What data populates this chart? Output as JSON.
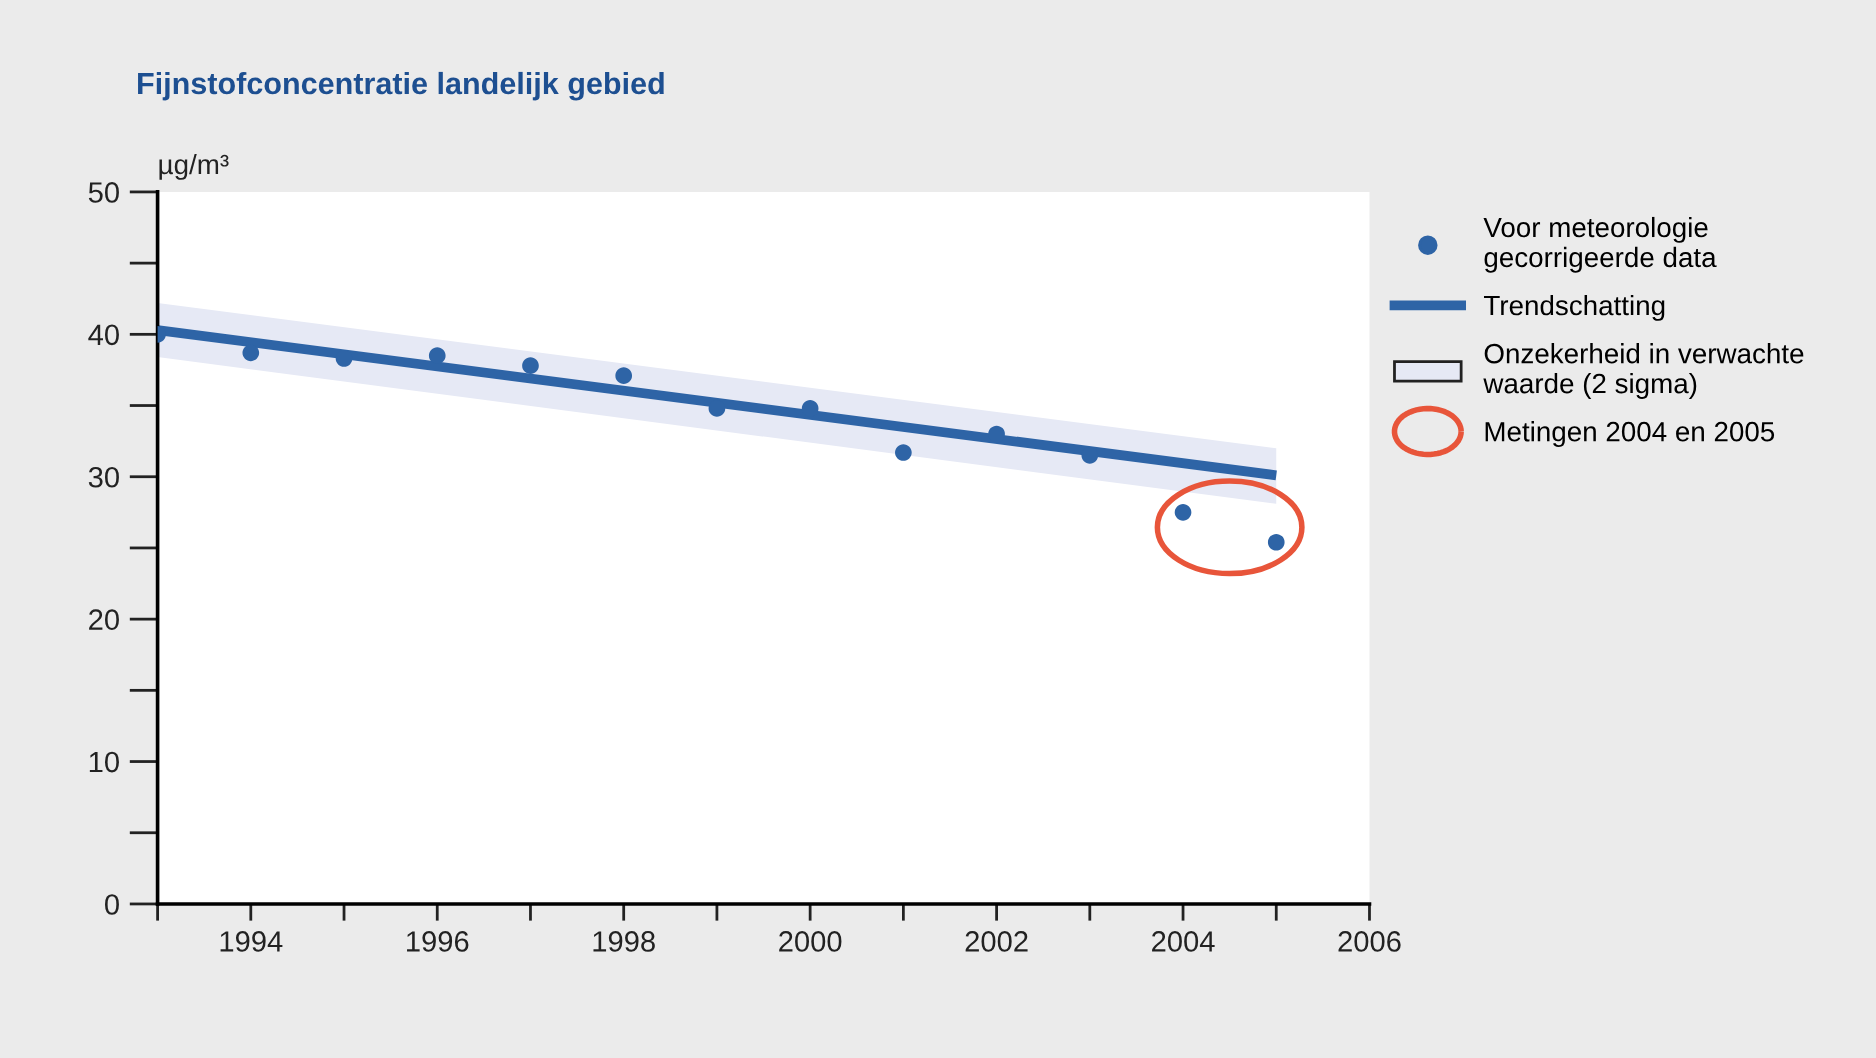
{
  "chart_data": {
    "type": "scatter",
    "title": "Fijnstofconcentratie landelijk gebied",
    "ylabel": "µg/m³",
    "x": [
      1993,
      1994,
      1995,
      1996,
      1997,
      1998,
      1999,
      2000,
      2001,
      2002,
      2003,
      2004,
      2005
    ],
    "series": [
      {
        "name": "Voor meteorologie\ngecorrigeerde data",
        "color": "#2e64a6",
        "marker": "circle",
        "values": [
          40.0,
          38.7,
          38.3,
          38.5,
          37.8,
          37.1,
          34.8,
          34.8,
          31.7,
          33.0,
          31.5,
          27.5,
          25.4
        ]
      },
      {
        "name": "Trendschatting",
        "type": "line",
        "color": "#2e64a6",
        "line_style": "solid",
        "x": [
          1993,
          2005
        ],
        "values": [
          40.3,
          30.1
        ],
        "lower": [
          38.4,
          28.1
        ],
        "upper": [
          42.2,
          32.0
        ]
      }
    ],
    "annotations": [
      "Onzekerheid in verwachte\nwaarde (2 sigma)",
      "Metingen 2004 en 2005"
    ],
    "xlim": [
      1993,
      2006
    ],
    "xticks": [
      {
        "value": 1993,
        "label": null
      },
      1994,
      {
        "value": 1995,
        "label": null
      },
      1996,
      {
        "value": 1997,
        "label": null
      },
      1998,
      {
        "value": 1999,
        "label": null
      },
      2000,
      {
        "value": 2001,
        "label": null
      },
      2002,
      {
        "value": 2003,
        "label": null
      },
      2004,
      {
        "value": 2005,
        "label": null
      },
      2006
    ],
    "ylim": [
      0,
      50
    ],
    "yticks": [
      0,
      {
        "value": 5,
        "label": null
      },
      10,
      {
        "value": 15,
        "label": null
      },
      20,
      {
        "value": 25,
        "label": null
      },
      30,
      {
        "value": 35,
        "label": null
      },
      40,
      {
        "value": 45,
        "label": null
      },
      50
    ],
    "grid": false,
    "legend": "right"
  }
}
